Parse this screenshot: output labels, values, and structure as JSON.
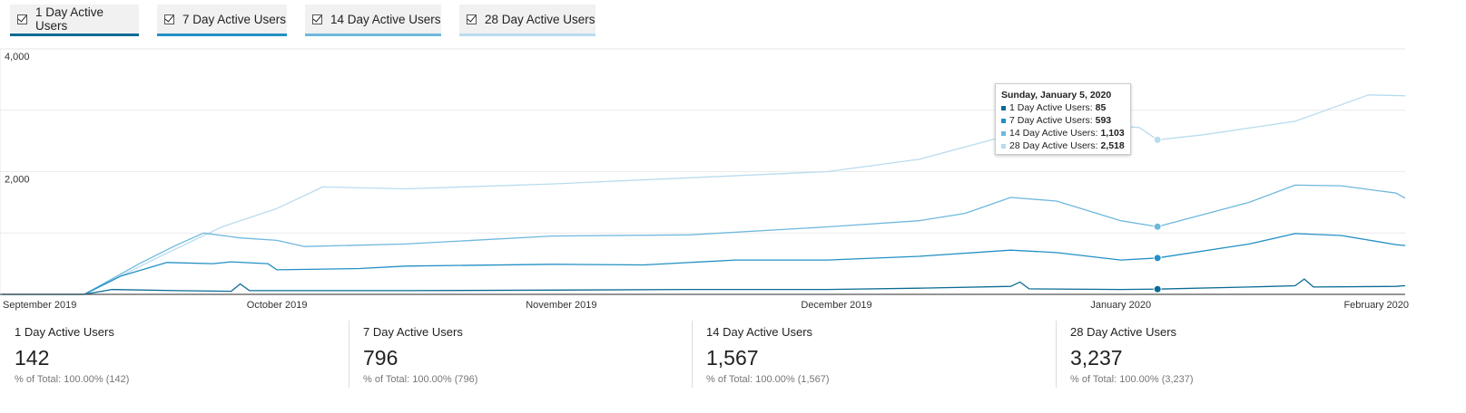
{
  "toggles": [
    {
      "label": "1 Day Active Users",
      "color": "#0b6b94"
    },
    {
      "label": "7 Day Active Users",
      "color": "#2390c5"
    },
    {
      "label": "14 Day Active Users",
      "color": "#6fb8dd"
    },
    {
      "label": "28 Day Active Users",
      "color": "#b9dcee"
    }
  ],
  "tooltip": {
    "title": "Sunday, January 5, 2020",
    "rows": [
      {
        "label": "1 Day Active Users:",
        "value": "85"
      },
      {
        "label": "7 Day Active Users:",
        "value": "593"
      },
      {
        "label": "14 Day Active Users:",
        "value": "1,103"
      },
      {
        "label": "28 Day Active Users:",
        "value": "2,518"
      }
    ]
  },
  "summary": [
    {
      "name": "1 Day Active Users",
      "value": "142",
      "pct": "% of Total: 100.00% (142)"
    },
    {
      "name": "7 Day Active Users",
      "value": "796",
      "pct": "% of Total: 100.00% (796)"
    },
    {
      "name": "14 Day Active Users",
      "value": "1,567",
      "pct": "% of Total: 100.00% (1,567)"
    },
    {
      "name": "28 Day Active Users",
      "value": "3,237",
      "pct": "% of Total: 100.00% (3,237)"
    }
  ],
  "chart_data": {
    "type": "line",
    "title": "",
    "xlabel": "",
    "ylabel": "",
    "ylim": [
      0,
      4000
    ],
    "yticks": [
      "4,000",
      "2,000"
    ],
    "xticks": [
      "September 2019",
      "October 2019",
      "November 2019",
      "December 2019",
      "January 2020",
      "February 2020"
    ],
    "grid": true,
    "legend": "top toggles",
    "highlight": {
      "x": "2020-01-05"
    },
    "series": [
      {
        "name": "1 Day Active Users",
        "color": "#0b6b94",
        "points": [
          [
            "2019-09-01",
            0
          ],
          [
            "2019-09-10",
            0
          ],
          [
            "2019-09-13",
            80
          ],
          [
            "2019-09-20",
            60
          ],
          [
            "2019-09-26",
            50
          ],
          [
            "2019-09-27",
            170
          ],
          [
            "2019-09-28",
            60
          ],
          [
            "2019-10-15",
            60
          ],
          [
            "2019-10-31",
            70
          ],
          [
            "2019-11-15",
            80
          ],
          [
            "2019-11-30",
            80
          ],
          [
            "2019-12-10",
            100
          ],
          [
            "2019-12-20",
            130
          ],
          [
            "2019-12-21",
            200
          ],
          [
            "2019-12-22",
            90
          ],
          [
            "2020-01-01",
            80
          ],
          [
            "2020-01-05",
            85
          ],
          [
            "2020-01-15",
            120
          ],
          [
            "2020-01-20",
            140
          ],
          [
            "2020-01-21",
            250
          ],
          [
            "2020-01-22",
            120
          ],
          [
            "2020-01-31",
            130
          ],
          [
            "2020-02-01",
            142
          ]
        ]
      },
      {
        "name": "7 Day Active Users",
        "color": "#2390c5",
        "points": [
          [
            "2019-09-01",
            0
          ],
          [
            "2019-09-10",
            0
          ],
          [
            "2019-09-14",
            300
          ],
          [
            "2019-09-19",
            520
          ],
          [
            "2019-09-24",
            500
          ],
          [
            "2019-09-26",
            530
          ],
          [
            "2019-09-30",
            500
          ],
          [
            "2019-10-01",
            400
          ],
          [
            "2019-10-10",
            420
          ],
          [
            "2019-10-15",
            460
          ],
          [
            "2019-10-31",
            490
          ],
          [
            "2019-11-10",
            480
          ],
          [
            "2019-11-20",
            560
          ],
          [
            "2019-11-30",
            560
          ],
          [
            "2019-12-10",
            620
          ],
          [
            "2019-12-20",
            720
          ],
          [
            "2019-12-25",
            680
          ],
          [
            "2020-01-01",
            560
          ],
          [
            "2020-01-05",
            593
          ],
          [
            "2020-01-15",
            820
          ],
          [
            "2020-01-20",
            990
          ],
          [
            "2020-01-25",
            960
          ],
          [
            "2020-01-31",
            810
          ],
          [
            "2020-02-01",
            796
          ]
        ]
      },
      {
        "name": "14 Day Active Users",
        "color": "#6fb8dd",
        "points": [
          [
            "2019-09-01",
            0
          ],
          [
            "2019-09-10",
            0
          ],
          [
            "2019-09-16",
            500
          ],
          [
            "2019-09-20",
            800
          ],
          [
            "2019-09-23",
            1000
          ],
          [
            "2019-09-27",
            920
          ],
          [
            "2019-10-01",
            880
          ],
          [
            "2019-10-04",
            780
          ],
          [
            "2019-10-15",
            820
          ],
          [
            "2019-10-31",
            950
          ],
          [
            "2019-11-15",
            970
          ],
          [
            "2019-11-30",
            1100
          ],
          [
            "2019-12-10",
            1200
          ],
          [
            "2019-12-15",
            1320
          ],
          [
            "2019-12-20",
            1580
          ],
          [
            "2019-12-25",
            1520
          ],
          [
            "2020-01-01",
            1200
          ],
          [
            "2020-01-05",
            1103
          ],
          [
            "2020-01-15",
            1500
          ],
          [
            "2020-01-20",
            1780
          ],
          [
            "2020-01-25",
            1770
          ],
          [
            "2020-01-31",
            1650
          ],
          [
            "2020-02-01",
            1567
          ]
        ]
      },
      {
        "name": "28 Day Active Users",
        "color": "#b9dcee",
        "points": [
          [
            "2019-09-01",
            0
          ],
          [
            "2019-09-10",
            0
          ],
          [
            "2019-09-18",
            600
          ],
          [
            "2019-09-25",
            1100
          ],
          [
            "2019-10-01",
            1400
          ],
          [
            "2019-10-06",
            1750
          ],
          [
            "2019-10-15",
            1720
          ],
          [
            "2019-10-31",
            1800
          ],
          [
            "2019-11-15",
            1900
          ],
          [
            "2019-11-30",
            2000
          ],
          [
            "2019-12-10",
            2200
          ],
          [
            "2019-12-20",
            2600
          ],
          [
            "2019-12-28",
            2780
          ],
          [
            "2020-01-03",
            2720
          ],
          [
            "2020-01-05",
            2518
          ],
          [
            "2020-01-10",
            2600
          ],
          [
            "2020-01-20",
            2820
          ],
          [
            "2020-01-28",
            3250
          ],
          [
            "2020-02-01",
            3237
          ]
        ]
      }
    ]
  }
}
